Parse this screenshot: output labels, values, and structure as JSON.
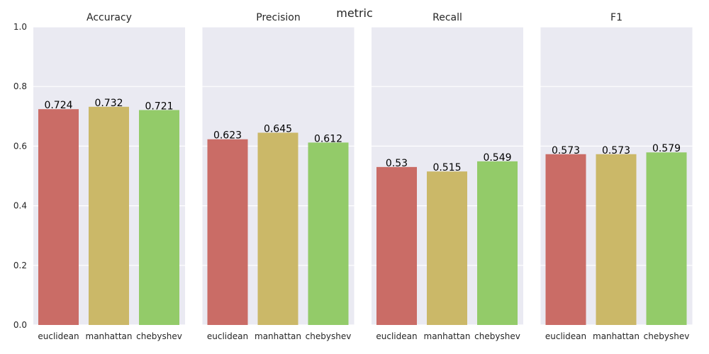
{
  "figure": {
    "title": "metric"
  },
  "colors": {
    "euclidean": "#ca6c66",
    "manhattan": "#cbb868",
    "chebyshev": "#93cb69",
    "panel_bg": "#eaeaf2",
    "grid": "#ffffff"
  },
  "chart_data": {
    "type": "bar",
    "title": "metric",
    "categories": [
      "euclidean",
      "manhattan",
      "chebyshev"
    ],
    "ylim": [
      0,
      1
    ],
    "yticks": [
      "0.0",
      "0.2",
      "0.4",
      "0.6",
      "0.8",
      "1.0"
    ],
    "grid": true,
    "panels": [
      {
        "title": "Accuracy",
        "values": [
          0.724,
          0.732,
          0.721
        ],
        "labels": [
          "0.724",
          "0.732",
          "0.721"
        ]
      },
      {
        "title": "Precision",
        "values": [
          0.623,
          0.645,
          0.612
        ],
        "labels": [
          "0.623",
          "0.645",
          "0.612"
        ]
      },
      {
        "title": "Recall",
        "values": [
          0.53,
          0.515,
          0.549
        ],
        "labels": [
          "0.53",
          "0.515",
          "0.549"
        ]
      },
      {
        "title": "F1",
        "values": [
          0.573,
          0.573,
          0.579
        ],
        "labels": [
          "0.573",
          "0.573",
          "0.579"
        ]
      }
    ]
  }
}
